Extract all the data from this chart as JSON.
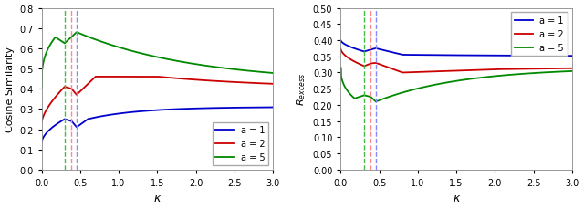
{
  "left_plot": {
    "xlabel": "κ",
    "ylabel": "Cosine Similarity",
    "xlim": [
      0,
      3
    ],
    "ylim": [
      0,
      0.8
    ],
    "yticks": [
      0,
      0.1,
      0.2,
      0.3,
      0.4,
      0.5,
      0.6,
      0.7,
      0.8
    ],
    "xticks": [
      0,
      0.5,
      1.0,
      1.5,
      2.0,
      2.5,
      3.0
    ],
    "vlines": {
      "green": 0.305,
      "red": 0.39,
      "blue": 0.455
    },
    "legend_loc": "lower right"
  },
  "right_plot": {
    "xlabel": "κ",
    "ylabel": "$R_{excess}$",
    "xlim": [
      0,
      3
    ],
    "ylim": [
      0,
      0.5
    ],
    "yticks": [
      0,
      0.05,
      0.1,
      0.15,
      0.2,
      0.25,
      0.3,
      0.35,
      0.4,
      0.45,
      0.5
    ],
    "xticks": [
      0,
      0.5,
      1.0,
      1.5,
      2.0,
      2.5,
      3.0
    ],
    "vlines": {
      "green": 0.305,
      "red": 0.39,
      "blue": 0.455
    },
    "legend_loc": "upper right"
  },
  "colors": {
    "blue": "#0000cd",
    "red": "#cc0000",
    "green": "#008800"
  },
  "vline_colors": {
    "green": "#44bb44",
    "red": "#ff8888",
    "blue": "#8888ff"
  },
  "background_color": "#ffffff",
  "line_width": 1.3
}
